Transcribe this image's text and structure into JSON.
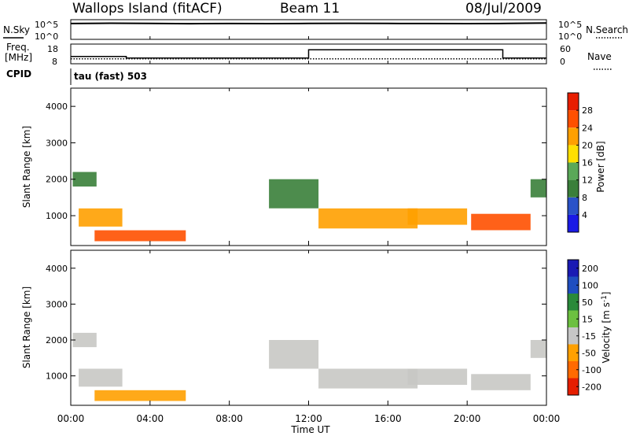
{
  "header": {
    "station": "Wallops Island (fitACF)",
    "beam": "Beam 11",
    "date": "08/Jul/2009"
  },
  "aux_panels": {
    "nsky_label": "N.Sky",
    "nsearch_label": "N.Search",
    "noise_ticks": [
      "10^5",
      "10^0"
    ],
    "freq_label_line1": "Freq.",
    "freq_label_line2": "[MHz]",
    "freq_ticks": [
      "18",
      "8"
    ],
    "nave_label": "Nave",
    "nave_ticks": [
      "60",
      "0"
    ],
    "cpid_label": "CPID",
    "cpid_value": "tau (fast) 503"
  },
  "colors": {
    "power_scale": [
      "#1a1ae6",
      "#2a52c8",
      "#3a7f3a",
      "#5aa858",
      "#ffe000",
      "#ffa000",
      "#ff5000",
      "#e81e00"
    ],
    "velocity_scale": [
      "#1a1ab4",
      "#1f4ec0",
      "#2a8a3a",
      "#6cc040",
      "#c6c6c6",
      "#ffa000",
      "#ff6a00",
      "#e61e00"
    ],
    "ground_scatter": "#c8c8c4"
  },
  "chart_data": [
    {
      "type": "line",
      "title": "N.Sky / N.Search",
      "y_scale": "log",
      "ylim": [
        1,
        100000
      ],
      "x_ticks": [
        "00:00",
        "04:00",
        "08:00",
        "12:00",
        "16:00",
        "20:00",
        "00:00"
      ],
      "series": [
        {
          "name": "N.Sky",
          "style": "solid",
          "x_hours": [
            0,
            2,
            4,
            6,
            8,
            10,
            12,
            14,
            16,
            18,
            20,
            22,
            24
          ],
          "values": [
            20000,
            25000,
            22000,
            18000,
            20000,
            19000,
            21000,
            24000,
            22000,
            20000,
            19000,
            22000,
            30000
          ]
        },
        {
          "name": "N.Search",
          "style": "dotted",
          "x_hours": [],
          "values": []
        }
      ]
    },
    {
      "type": "line",
      "title": "Freq. / Nave",
      "ylabel": "Freq. [MHz]",
      "ylim": [
        8,
        18
      ],
      "y2label": "Nave",
      "y2lim": [
        0,
        60
      ],
      "x_ticks": [
        "00:00",
        "04:00",
        "08:00",
        "12:00",
        "16:00",
        "20:00",
        "00:00"
      ],
      "series": [
        {
          "name": "Freq. [MHz]",
          "style": "solid",
          "x_hours": [
            0,
            2.8,
            2.8,
            12,
            12,
            21.8,
            21.8,
            24
          ],
          "values": [
            11.5,
            11.5,
            10.5,
            10.5,
            15.5,
            15.5,
            10.5,
            10.5
          ]
        },
        {
          "name": "Nave",
          "style": "dotted",
          "x_hours": [
            0,
            24
          ],
          "values": [
            12,
            12
          ]
        }
      ]
    },
    {
      "type": "heatmap",
      "title": "Power",
      "xlabel": "Time UT",
      "ylabel": "Slant Range [km]",
      "ylim": [
        180,
        4500
      ],
      "y_ticks": [
        1000,
        2000,
        3000,
        4000
      ],
      "x_ticks": [
        "00:00",
        "04:00",
        "08:00",
        "12:00",
        "16:00",
        "20:00",
        "00:00"
      ],
      "colorbar_label": "Power [dB]",
      "colorbar_ticks": [
        4,
        8,
        12,
        16,
        20,
        24,
        28
      ],
      "clim": [
        0,
        32
      ],
      "scatter_regions": [
        {
          "t_start": 0.1,
          "t_end": 1.3,
          "r_start": 1800,
          "r_end": 2200,
          "level": 10
        },
        {
          "t_start": 0.4,
          "t_end": 2.6,
          "r_start": 700,
          "r_end": 1200,
          "level": 22
        },
        {
          "t_start": 1.2,
          "t_end": 5.8,
          "r_start": 300,
          "r_end": 600,
          "level": 24
        },
        {
          "t_start": 10.0,
          "t_end": 12.5,
          "r_start": 1200,
          "r_end": 2000,
          "level": 9
        },
        {
          "t_start": 12.5,
          "t_end": 17.5,
          "r_start": 650,
          "r_end": 1200,
          "level": 23
        },
        {
          "t_start": 17.0,
          "t_end": 20.0,
          "r_start": 750,
          "r_end": 1200,
          "level": 22
        },
        {
          "t_start": 20.2,
          "t_end": 23.2,
          "r_start": 600,
          "r_end": 1050,
          "level": 24
        },
        {
          "t_start": 23.2,
          "t_end": 24.0,
          "r_start": 1500,
          "r_end": 2000,
          "level": 10
        }
      ]
    },
    {
      "type": "heatmap",
      "title": "Velocity",
      "xlabel": "Time UT",
      "ylabel": "Slant Range [km]",
      "ylim": [
        180,
        4500
      ],
      "y_ticks": [
        1000,
        2000,
        3000,
        4000
      ],
      "x_ticks": [
        "00:00",
        "04:00",
        "08:00",
        "12:00",
        "16:00",
        "20:00",
        "00:00"
      ],
      "colorbar_label": "Velocity [m s^-1]",
      "colorbar_ticks": [
        200,
        100,
        50,
        15,
        -15,
        -50,
        -100,
        -200
      ],
      "clim": [
        -200,
        200
      ],
      "ground_scatter_value": "gray",
      "scatter_regions": [
        {
          "t_start": 0.1,
          "t_end": 1.3,
          "r_start": 1800,
          "r_end": 2200,
          "level": "gray"
        },
        {
          "t_start": 0.4,
          "t_end": 2.6,
          "r_start": 700,
          "r_end": 1200,
          "level": "gray"
        },
        {
          "t_start": 1.2,
          "t_end": 5.8,
          "r_start": 300,
          "r_end": 600,
          "level": -50
        },
        {
          "t_start": 10.0,
          "t_end": 12.5,
          "r_start": 1200,
          "r_end": 2000,
          "level": "gray"
        },
        {
          "t_start": 12.5,
          "t_end": 17.5,
          "r_start": 650,
          "r_end": 1200,
          "level": "gray"
        },
        {
          "t_start": 17.0,
          "t_end": 20.0,
          "r_start": 750,
          "r_end": 1200,
          "level": "gray"
        },
        {
          "t_start": 20.2,
          "t_end": 23.2,
          "r_start": 600,
          "r_end": 1050,
          "level": "gray"
        },
        {
          "t_start": 23.2,
          "t_end": 24.0,
          "r_start": 1500,
          "r_end": 2000,
          "level": "gray"
        }
      ]
    }
  ]
}
